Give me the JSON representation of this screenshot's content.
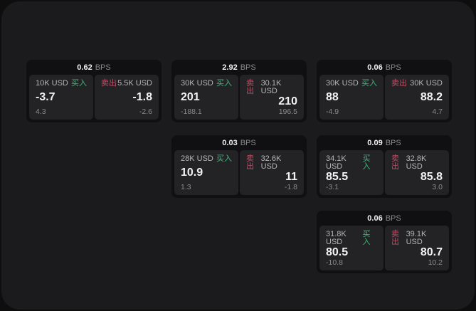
{
  "units": {
    "bps": "BPS"
  },
  "labels": {
    "buy": "买入",
    "sell": "卖出"
  },
  "colors": {
    "page-bg": "#0e0e0f",
    "panel-bg": "#1b1b1d",
    "card-bg": "#101012",
    "tile-bg": "#232326",
    "text-primary": "#f2f2f2",
    "text-secondary": "#b5b5b5",
    "text-muted": "#8a8a8a",
    "buy-green": "#3eb77a",
    "sell-red": "#c44d66"
  },
  "cards": [
    {
      "bps": "0.62",
      "buy": {
        "amount": "10K USD",
        "value": "-3.7",
        "delta": "4.3"
      },
      "sell": {
        "amount": "5.5K USD",
        "value": "-1.8",
        "delta": "-2.6"
      }
    },
    {
      "bps": "2.92",
      "buy": {
        "amount": "30K USD",
        "value": "201",
        "delta": "-188.1"
      },
      "sell": {
        "amount": "30.1K USD",
        "value": "210",
        "delta": "196.5"
      }
    },
    {
      "bps": "0.06",
      "buy": {
        "amount": "30K USD",
        "value": "88",
        "delta": "-4.9"
      },
      "sell": {
        "amount": "30K USD",
        "value": "88.2",
        "delta": "4.7"
      }
    },
    {
      "bps": "0.03",
      "buy": {
        "amount": "28K USD",
        "value": "10.9",
        "delta": "1.3"
      },
      "sell": {
        "amount": "32.6K USD",
        "value": "11",
        "delta": "-1.8"
      }
    },
    {
      "bps": "0.09",
      "buy": {
        "amount": "34.1K USD",
        "value": "85.5",
        "delta": "-3.1"
      },
      "sell": {
        "amount": "32.8K USD",
        "value": "85.8",
        "delta": "3.0"
      }
    },
    {
      "bps": "0.06",
      "buy": {
        "amount": "31.8K USD",
        "value": "80.5",
        "delta": "-10.8"
      },
      "sell": {
        "amount": "39.1K USD",
        "value": "80.7",
        "delta": "10.2"
      }
    }
  ]
}
